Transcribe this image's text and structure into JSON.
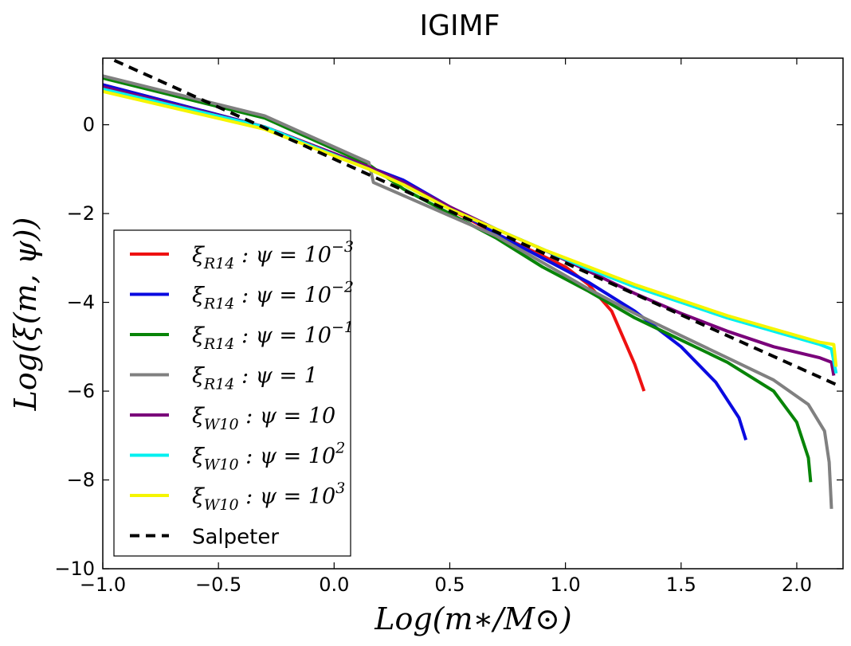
{
  "chart_data": {
    "type": "line",
    "title": "IGIMF",
    "xlabel": "Log(m∗/M⊙)",
    "ylabel": "Log(ξ(m, ψ))",
    "xlim": [
      -1.0,
      2.2
    ],
    "ylim": [
      -10,
      1.5
    ],
    "xticks": [
      -1.0,
      -0.5,
      0.0,
      0.5,
      1.0,
      1.5,
      2.0
    ],
    "xtick_labels": [
      "−1.0",
      "−0.5",
      "0.0",
      "0.5",
      "1.0",
      "1.5",
      "2.0"
    ],
    "yticks": [
      -10,
      -8,
      -6,
      -4,
      -2,
      0
    ],
    "ytick_labels": [
      "−10",
      "−8",
      "−6",
      "−4",
      "−2",
      "0"
    ],
    "grid": false,
    "legend_position": "lower-left",
    "series": [
      {
        "name": "ξR14 : ψ = 10⁻³",
        "legend": {
          "base": "ξ",
          "sub": "R14",
          "mid": " : ψ = 10",
          "sup": "−3"
        },
        "color": "#ee1111",
        "style": "solid",
        "points": [
          [
            -1.0,
            0.9
          ],
          [
            -0.3,
            -0.05
          ],
          [
            0.15,
            -0.95
          ],
          [
            0.3,
            -1.3
          ],
          [
            0.5,
            -1.9
          ],
          [
            0.7,
            -2.45
          ],
          [
            0.9,
            -2.95
          ],
          [
            1.0,
            -3.2
          ],
          [
            1.1,
            -3.6
          ],
          [
            1.2,
            -4.2
          ],
          [
            1.3,
            -5.4
          ],
          [
            1.34,
            -6.0
          ]
        ]
      },
      {
        "name": "ξR14 : ψ = 10⁻²",
        "legend": {
          "base": "ξ",
          "sub": "R14",
          "mid": " : ψ = 10",
          "sup": "−2"
        },
        "color": "#0a0ae0",
        "style": "solid",
        "points": [
          [
            -1.0,
            0.9
          ],
          [
            -0.3,
            -0.05
          ],
          [
            0.15,
            -0.95
          ],
          [
            0.3,
            -1.25
          ],
          [
            0.5,
            -1.85
          ],
          [
            0.7,
            -2.45
          ],
          [
            0.9,
            -3.0
          ],
          [
            1.1,
            -3.55
          ],
          [
            1.3,
            -4.2
          ],
          [
            1.5,
            -5.0
          ],
          [
            1.65,
            -5.8
          ],
          [
            1.75,
            -6.6
          ],
          [
            1.78,
            -7.1
          ]
        ]
      },
      {
        "name": "ξR14 : ψ = 10⁻¹",
        "legend": {
          "base": "ξ",
          "sub": "R14",
          "mid": " : ψ = 10",
          "sup": "−1"
        },
        "color": "#088408",
        "style": "solid",
        "points": [
          [
            -1.0,
            1.05
          ],
          [
            -0.3,
            0.15
          ],
          [
            0.15,
            -0.9
          ],
          [
            0.3,
            -1.45
          ],
          [
            0.5,
            -2.0
          ],
          [
            0.7,
            -2.55
          ],
          [
            0.9,
            -3.2
          ],
          [
            1.1,
            -3.75
          ],
          [
            1.3,
            -4.35
          ],
          [
            1.5,
            -4.85
          ],
          [
            1.7,
            -5.35
          ],
          [
            1.9,
            -6.0
          ],
          [
            2.0,
            -6.7
          ],
          [
            2.05,
            -7.5
          ],
          [
            2.06,
            -8.05
          ]
        ]
      },
      {
        "name": "ξR14 : ψ = 1",
        "legend": {
          "base": "ξ",
          "sub": "R14",
          "mid": " : ψ = 1",
          "sup": ""
        },
        "color": "#808080",
        "style": "solid",
        "points": [
          [
            -1.0,
            1.1
          ],
          [
            -0.3,
            0.2
          ],
          [
            0.15,
            -0.85
          ],
          [
            0.17,
            -1.3
          ],
          [
            0.5,
            -2.05
          ],
          [
            0.7,
            -2.5
          ],
          [
            0.9,
            -3.1
          ],
          [
            1.1,
            -3.7
          ],
          [
            1.3,
            -4.25
          ],
          [
            1.5,
            -4.75
          ],
          [
            1.7,
            -5.25
          ],
          [
            1.9,
            -5.75
          ],
          [
            2.05,
            -6.3
          ],
          [
            2.12,
            -6.9
          ],
          [
            2.14,
            -7.6
          ],
          [
            2.15,
            -8.65
          ]
        ]
      },
      {
        "name": "ξW10 : ψ = 10",
        "legend": {
          "base": "ξ",
          "sub": "W10",
          "mid": " : ψ = 10",
          "sup": ""
        },
        "color": "#7a007a",
        "style": "solid",
        "points": [
          [
            -1.0,
            0.85
          ],
          [
            -0.3,
            -0.05
          ],
          [
            0.15,
            -0.95
          ],
          [
            0.3,
            -1.3
          ],
          [
            0.5,
            -1.85
          ],
          [
            0.7,
            -2.35
          ],
          [
            0.9,
            -2.8
          ],
          [
            1.1,
            -3.3
          ],
          [
            1.3,
            -3.8
          ],
          [
            1.5,
            -4.25
          ],
          [
            1.7,
            -4.65
          ],
          [
            1.9,
            -5.0
          ],
          [
            2.1,
            -5.25
          ],
          [
            2.15,
            -5.35
          ],
          [
            2.16,
            -5.65
          ]
        ]
      },
      {
        "name": "ξW10 : ψ = 10²",
        "legend": {
          "base": "ξ",
          "sub": "W10",
          "mid": " : ψ = 10",
          "sup": "2"
        },
        "color": "#00f0f0",
        "style": "solid",
        "points": [
          [
            -1.0,
            0.8
          ],
          [
            -0.3,
            -0.05
          ],
          [
            0.15,
            -1.0
          ],
          [
            0.3,
            -1.35
          ],
          [
            0.5,
            -1.9
          ],
          [
            0.7,
            -2.35
          ],
          [
            0.9,
            -2.8
          ],
          [
            1.1,
            -3.25
          ],
          [
            1.3,
            -3.65
          ],
          [
            1.5,
            -4.0
          ],
          [
            1.7,
            -4.35
          ],
          [
            1.9,
            -4.65
          ],
          [
            2.1,
            -4.95
          ],
          [
            2.15,
            -5.05
          ],
          [
            2.17,
            -5.6
          ]
        ]
      },
      {
        "name": "ξW10 : ψ = 10³",
        "legend": {
          "base": "ξ",
          "sub": "W10",
          "mid": " : ψ = 10",
          "sup": "3"
        },
        "color": "#f5f500",
        "style": "solid",
        "points": [
          [
            -1.0,
            0.75
          ],
          [
            -0.3,
            -0.1
          ],
          [
            0.15,
            -1.0
          ],
          [
            0.3,
            -1.35
          ],
          [
            0.5,
            -1.9
          ],
          [
            0.7,
            -2.35
          ],
          [
            0.9,
            -2.8
          ],
          [
            1.1,
            -3.2
          ],
          [
            1.3,
            -3.6
          ],
          [
            1.5,
            -3.95
          ],
          [
            1.7,
            -4.3
          ],
          [
            1.9,
            -4.6
          ],
          [
            2.1,
            -4.9
          ],
          [
            2.16,
            -4.95
          ],
          [
            2.17,
            -5.45
          ]
        ]
      },
      {
        "name": "Salpeter",
        "legend": {
          "base": "Salpeter",
          "sub": "",
          "mid": "",
          "sup": ""
        },
        "color": "#000000",
        "style": "dashed",
        "points": [
          [
            -0.95,
            1.45
          ],
          [
            2.17,
            -5.85
          ]
        ]
      }
    ]
  }
}
